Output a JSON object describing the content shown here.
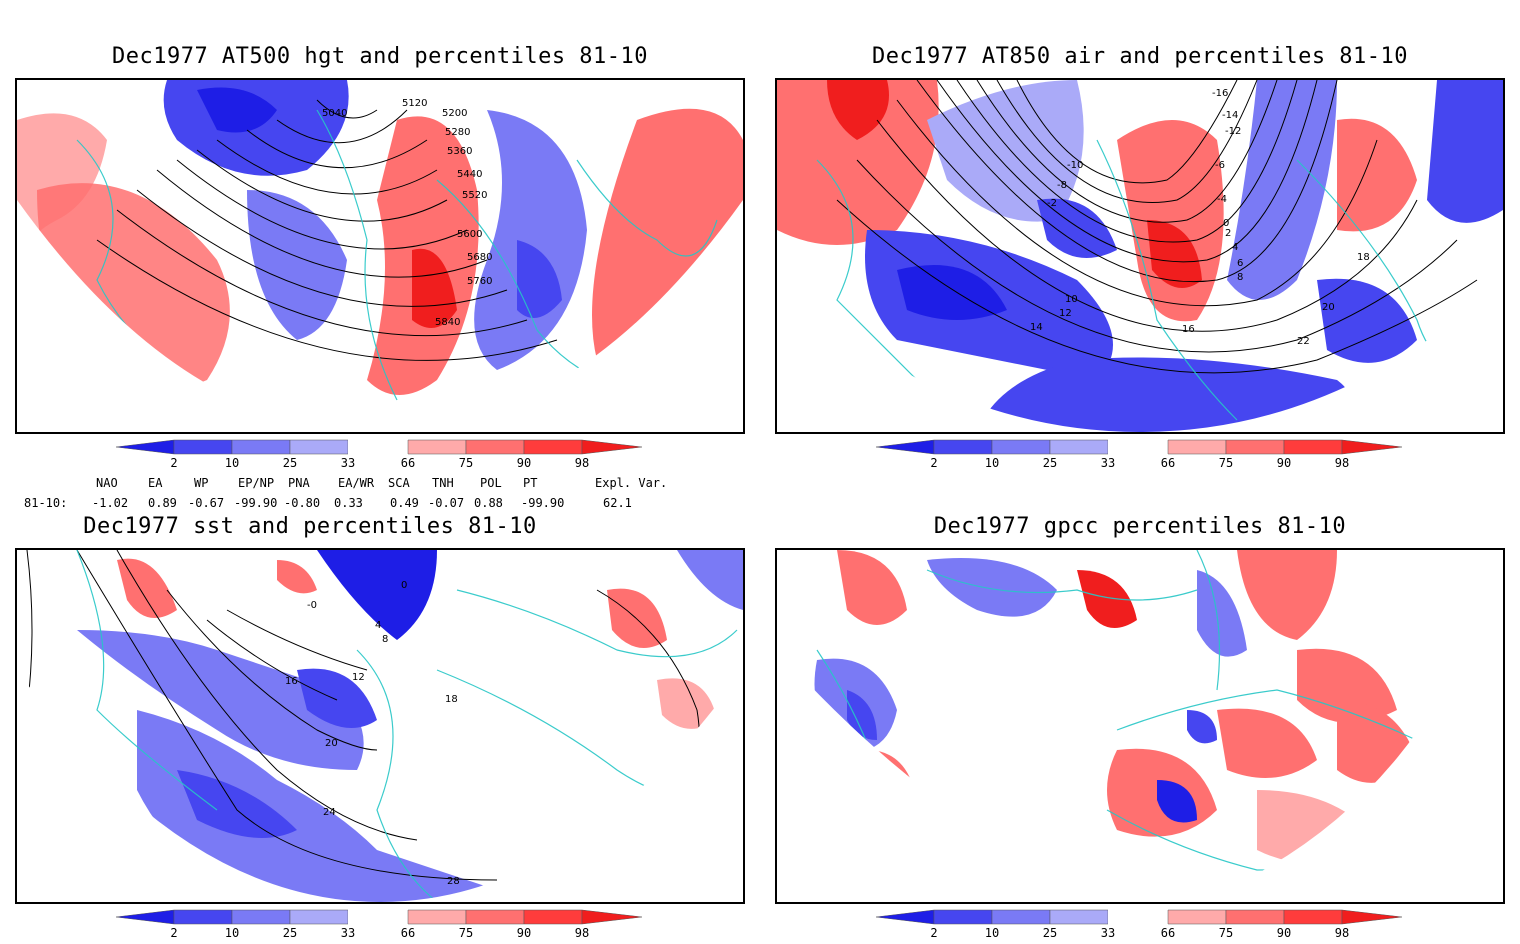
{
  "panels": [
    {
      "title": "Dec1977 AT500 hgt and percentiles 81-10",
      "contours": [
        "5040",
        "5120",
        "5200",
        "5280",
        "5360",
        "5440",
        "5520",
        "5600",
        "5680",
        "5760",
        "5840"
      ]
    },
    {
      "title": "Dec1977 AT850 air and percentiles 81-10",
      "contours": [
        "-16",
        "-14",
        "-12",
        "-10",
        "-8",
        "-6",
        "-4",
        "-2",
        "0",
        "2",
        "4",
        "6",
        "8",
        "10",
        "12",
        "14",
        "16",
        "18",
        "20",
        "22"
      ]
    },
    {
      "title": "Dec1977 sst and percentiles 81-10",
      "contours": [
        "-0",
        "0",
        "4",
        "8",
        "12",
        "16",
        "18",
        "20",
        "24",
        "28"
      ]
    },
    {
      "title": "Dec1977 gpcc percentiles 81-10",
      "contours": []
    }
  ],
  "colorbar": {
    "labels": [
      "2",
      "10",
      "25",
      "33",
      "66",
      "75",
      "90",
      "98"
    ],
    "colors": [
      "#1e1ee6",
      "#4646f0",
      "#7a7af5",
      "#aaaaf8",
      "#ffffff",
      "#ffaaaa",
      "#ff7070",
      "#ff3c3c",
      "#f01e1e"
    ]
  },
  "indices": {
    "row_label": "81-10:",
    "names": [
      "NAO",
      "EA",
      "WP",
      "EP/NP",
      "PNA",
      "EA/WR",
      "SCA",
      "TNH",
      "POL",
      "PT",
      "Expl. Var."
    ],
    "values": [
      "-1.02",
      "0.89",
      "-0.67",
      "-99.90",
      "-0.80",
      "0.33",
      "0.49",
      "-0.07",
      "0.88",
      "-99.90",
      "62.1"
    ]
  }
}
